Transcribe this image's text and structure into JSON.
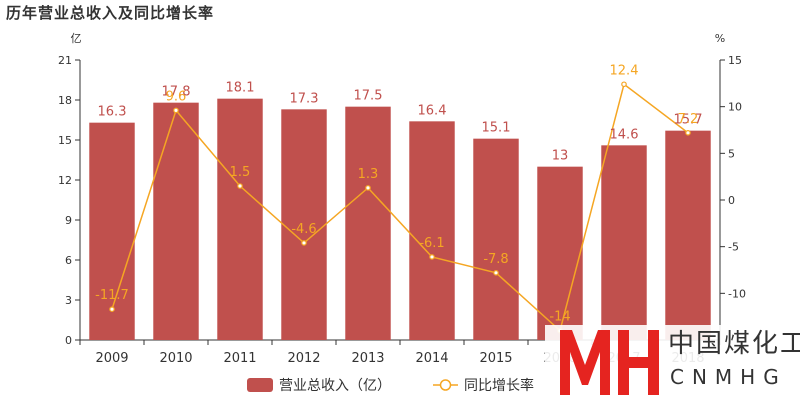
{
  "chart_data": {
    "type": "bar",
    "title": "历年营业总收入及同比增长率",
    "categories": [
      "2009",
      "2010",
      "2011",
      "2012",
      "2013",
      "2014",
      "2015",
      "2016",
      "2017",
      "2018"
    ],
    "series": [
      {
        "name": "营业总收入（亿）",
        "type": "bar",
        "axis": "left",
        "values": [
          16.3,
          17.8,
          18.1,
          17.3,
          17.5,
          16.4,
          15.1,
          13,
          14.6,
          15.7
        ]
      },
      {
        "name": "同比增长率",
        "type": "line",
        "axis": "right",
        "values": [
          -11.7,
          9.6,
          1.5,
          -4.6,
          1.3,
          -6.1,
          -7.8,
          -14,
          12.4,
          7.2
        ]
      }
    ],
    "left_axis": {
      "unit": "亿",
      "ylim": [
        0,
        21
      ],
      "ticks": [
        0,
        3,
        6,
        9,
        12,
        15,
        18,
        21
      ]
    },
    "right_axis": {
      "unit": "%",
      "ylim": [
        -15,
        15
      ],
      "ticks": [
        -10,
        -5,
        0,
        5,
        10,
        15
      ]
    },
    "legend_position": "bottom",
    "grid": false,
    "colors": {
      "bar": "#c0504d",
      "line": "#f5a623"
    }
  },
  "watermark": {
    "logo_letters": "MH",
    "text_cn": "中国煤化工",
    "text_en": "CNMHG",
    "color": "#e52420"
  }
}
